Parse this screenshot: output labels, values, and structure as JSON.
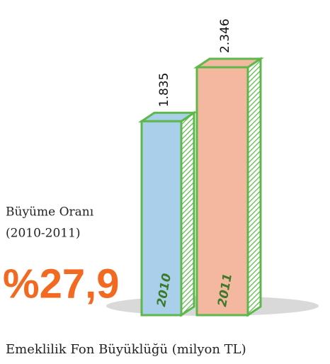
{
  "chart_data": {
    "type": "bar",
    "title": "Emeklilik Fon Büyüklüğü (milyon TL)",
    "categories": [
      "2010",
      "2011"
    ],
    "values": [
      1835,
      2346
    ],
    "value_labels": [
      "1.835",
      "2.346"
    ],
    "colors": [
      "#a9cfea",
      "#f4b7a0"
    ],
    "edge_color": "#5cb84a",
    "annotations": {
      "growth_label": [
        "Büyüme Oranı",
        "(2010-2011)"
      ],
      "growth_value": "%27,9"
    }
  }
}
